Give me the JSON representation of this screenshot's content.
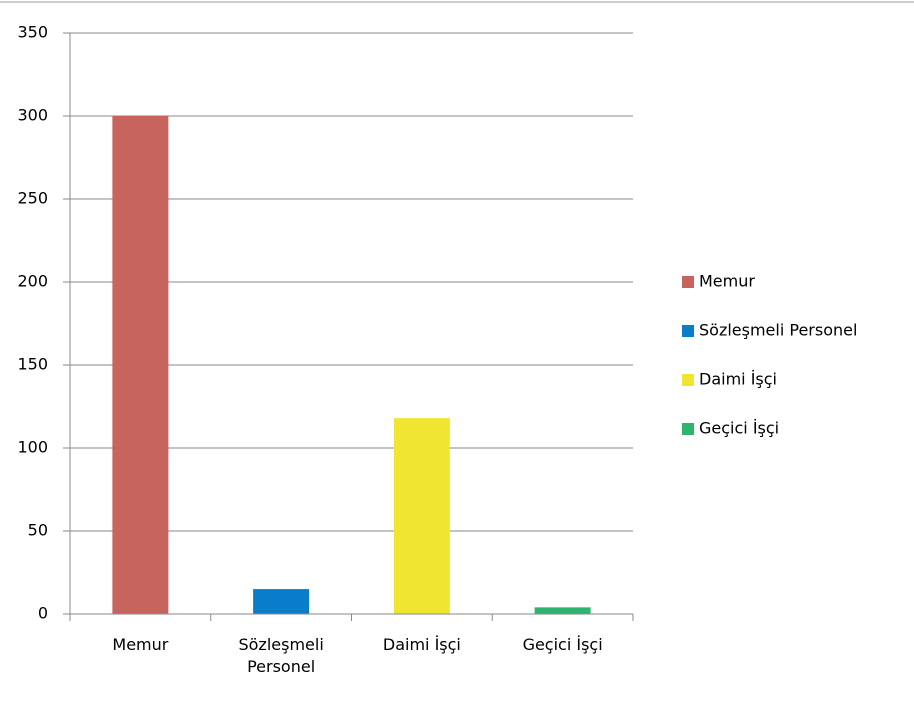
{
  "chart_data": {
    "type": "bar",
    "categories": [
      "Memur",
      "Sözleşmeli Personel",
      "Daimi İşçi",
      "Geçici İşçi"
    ],
    "values": [
      300,
      15,
      118,
      4
    ],
    "colors": [
      "#c8645e",
      "#0a7dc8",
      "#f0e632",
      "#2db46e"
    ],
    "ylim": [
      0,
      350
    ],
    "yticks": [
      0,
      50,
      100,
      150,
      200,
      250,
      300,
      350
    ],
    "grid": true,
    "legend": "right"
  }
}
